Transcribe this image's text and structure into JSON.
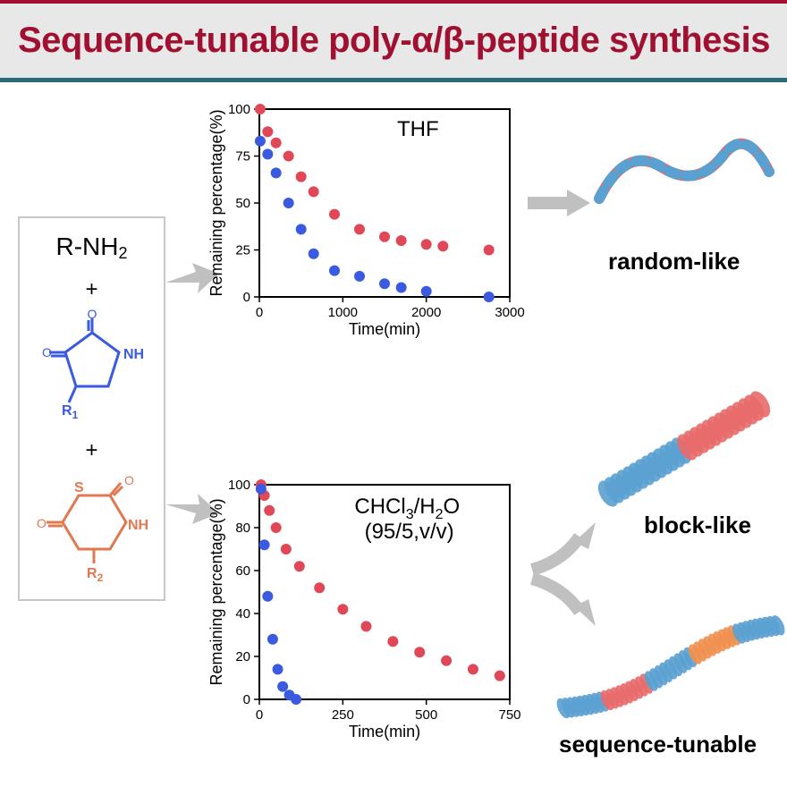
{
  "banner": {
    "title": "Sequence-tunable poly-α/β-peptide synthesis"
  },
  "chem": {
    "amine_label": "R-NH",
    "amine_sub": "2",
    "r1_label": "R",
    "r1_sub": "1",
    "r2_label": "R",
    "r2_sub": "2",
    "nh_label": "NH",
    "o_label": "O",
    "s_label": "S"
  },
  "chart_top": {
    "type": "scatter",
    "solvent": "THF",
    "xlabel": "Time(min)",
    "ylabel": "Remaining percentage(%)",
    "xlim": [
      0,
      3000
    ],
    "ylim": [
      0,
      100
    ],
    "xticks": [
      0,
      1000,
      2000,
      3000
    ],
    "yticks": [
      0,
      25,
      50,
      75,
      100
    ],
    "bg": "#ffffff",
    "marker_r": 6,
    "series": [
      {
        "name": "red",
        "color": "#e04858",
        "x": [
          10,
          100,
          200,
          350,
          500,
          650,
          900,
          1200,
          1500,
          1700,
          2000,
          2200,
          2750
        ],
        "y": [
          100,
          88,
          82,
          75,
          64,
          56,
          44,
          36,
          32,
          30,
          28,
          27,
          25
        ]
      },
      {
        "name": "blue",
        "color": "#3a5ae0",
        "x": [
          10,
          100,
          200,
          350,
          500,
          650,
          900,
          1200,
          1500,
          1700,
          2000,
          2750
        ],
        "y": [
          83,
          76,
          66,
          50,
          36,
          23,
          14,
          11,
          7,
          5,
          3,
          0
        ]
      }
    ]
  },
  "chart_bottom": {
    "type": "scatter",
    "solvent": "CHCl",
    "solvent_sub": "3",
    "solvent_tail": "/H",
    "solvent_sub2": "2",
    "solvent_tail2": "O",
    "ratio": "(95/5,v/v)",
    "xlabel": "Time(min)",
    "ylabel": "Remaining percentage(%)",
    "xlim": [
      0,
      750
    ],
    "ylim": [
      0,
      100
    ],
    "xticks": [
      0,
      250,
      500,
      750
    ],
    "yticks": [
      0,
      20,
      40,
      60,
      80,
      100
    ],
    "bg": "#ffffff",
    "marker_r": 6,
    "series": [
      {
        "name": "red",
        "color": "#e04858",
        "x": [
          5,
          15,
          30,
          50,
          80,
          120,
          180,
          250,
          320,
          400,
          480,
          560,
          640,
          720
        ],
        "y": [
          100,
          95,
          88,
          80,
          70,
          62,
          52,
          42,
          34,
          27,
          22,
          18,
          14,
          11
        ]
      },
      {
        "name": "blue",
        "color": "#3a5ae0",
        "x": [
          5,
          15,
          25,
          40,
          55,
          70,
          90,
          110
        ],
        "y": [
          98,
          72,
          48,
          28,
          14,
          6,
          2,
          0
        ]
      }
    ]
  },
  "results": {
    "random": "random-like",
    "block": "block-like",
    "tunable": "sequence-tunable"
  },
  "colors": {
    "banner_bg": "#e8e8e8",
    "banner_border_top": "#a01030",
    "banner_border_bottom": "#2a6a7a",
    "title": "#a01030",
    "arrow": "#c0c0c0",
    "blue_struct": "#3a5ae0",
    "red_struct": "#e07850",
    "helix_red": "#e86a6a",
    "helix_blue": "#5aa0d0",
    "helix_orange": "#f09050"
  }
}
